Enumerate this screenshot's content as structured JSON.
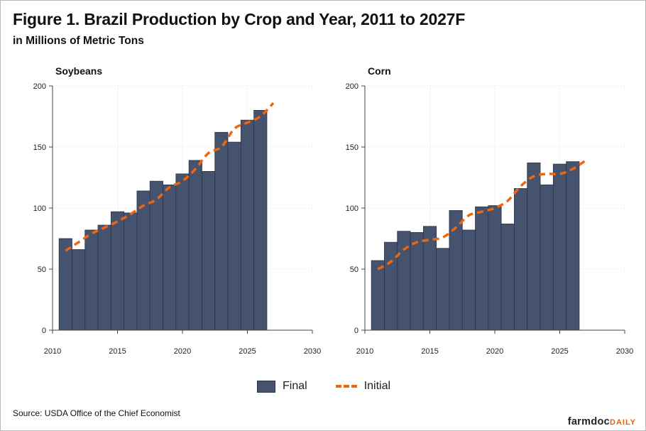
{
  "title": "Figure 1. Brazil Production by Crop and Year, 2011 to 2027F",
  "subtitle": "in Millions of Metric Tons",
  "source": "Source: USDA Office of the Chief Economist",
  "brand": {
    "main": "farmdoc",
    "accent": "DAILY"
  },
  "legend": {
    "final": "Final",
    "initial": "Initial"
  },
  "colors": {
    "bar": "#46536f",
    "bar_edge": "#2b3447",
    "line": "#f0650e",
    "grid": "#d9d9d9"
  },
  "chart_data": [
    {
      "type": "bar",
      "title": "Soybeans",
      "x": [
        2011,
        2012,
        2013,
        2014,
        2015,
        2016,
        2017,
        2018,
        2019,
        2020,
        2021,
        2022,
        2023,
        2024,
        2025,
        2026
      ],
      "series": [
        {
          "name": "Final",
          "type": "bar",
          "values": [
            75,
            66,
            82,
            86,
            97,
            96,
            114,
            122,
            119,
            128,
            139,
            130,
            162,
            154,
            172,
            180
          ]
        },
        {
          "name": "Initial",
          "type": "line",
          "x": [
            2011,
            2012,
            2013,
            2014,
            2015,
            2016,
            2017,
            2018,
            2019,
            2020,
            2021,
            2022,
            2023,
            2024,
            2025,
            2026,
            2027
          ],
          "values": [
            65,
            72,
            79,
            84,
            89,
            95,
            102,
            107,
            117,
            122,
            132,
            145,
            150,
            165,
            170,
            175,
            186
          ]
        }
      ],
      "xlim": [
        2010,
        2030
      ],
      "ylim": [
        0,
        200
      ],
      "xticks": [
        2010,
        2015,
        2020,
        2025,
        2030
      ],
      "yticks": [
        0,
        50,
        100,
        150,
        200
      ],
      "grid": true
    },
    {
      "type": "bar",
      "title": "Corn",
      "x": [
        2011,
        2012,
        2013,
        2014,
        2015,
        2016,
        2017,
        2018,
        2019,
        2020,
        2021,
        2022,
        2023,
        2024,
        2025,
        2026
      ],
      "series": [
        {
          "name": "Final",
          "type": "bar",
          "values": [
            57,
            72,
            81,
            80,
            85,
            67,
            98,
            82,
            101,
            102,
            87,
            116,
            137,
            119,
            136,
            138
          ]
        },
        {
          "name": "Initial",
          "type": "line",
          "x": [
            2011,
            2012,
            2013,
            2014,
            2015,
            2016,
            2017,
            2018,
            2019,
            2020,
            2021,
            2022,
            2023,
            2024,
            2025,
            2026,
            2027
          ],
          "values": [
            50,
            56,
            66,
            72,
            74,
            76,
            84,
            94,
            97,
            100,
            106,
            118,
            126,
            128,
            128,
            132,
            139
          ]
        }
      ],
      "xlim": [
        2010,
        2030
      ],
      "ylim": [
        0,
        200
      ],
      "xticks": [
        2010,
        2015,
        2020,
        2025,
        2030
      ],
      "yticks": [
        0,
        50,
        100,
        150,
        200
      ],
      "grid": true
    }
  ]
}
